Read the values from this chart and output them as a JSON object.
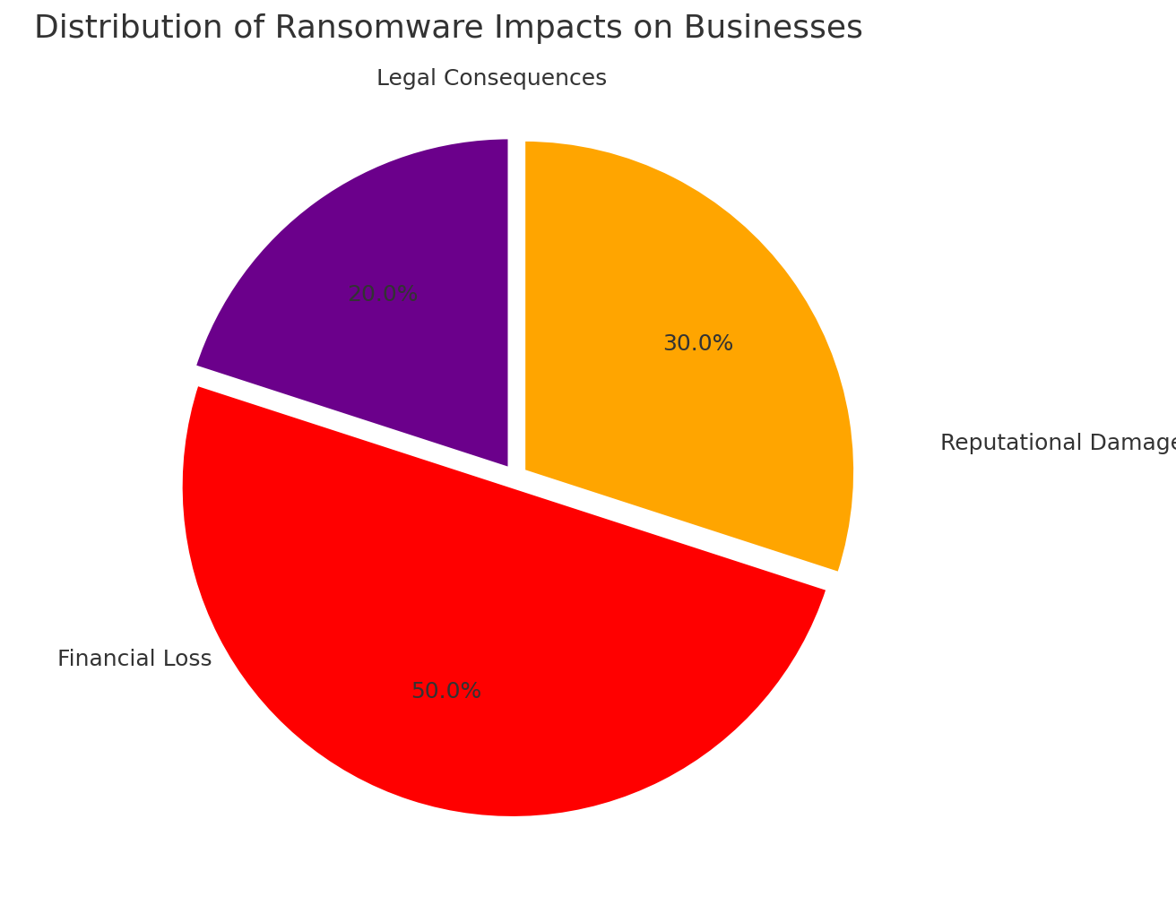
{
  "title": "Distribution of Ransomware Impacts on Businesses",
  "title_fontsize": 26,
  "labels": [
    "Reputational Damage",
    "Financial Loss",
    "Legal Consequences"
  ],
  "values": [
    30.0,
    50.0,
    20.0
  ],
  "colors": [
    "#FFA500",
    "#FF0000",
    "#6B008B"
  ],
  "explode": [
    0.03,
    0.03,
    0.03
  ],
  "autopct_fontsize": 18,
  "label_fontsize": 18,
  "startangle": 90,
  "background_color": "#FFFFFF",
  "text_color": "#333333",
  "wedge_linewidth": 3,
  "wedge_edgecolor": "#FFFFFF",
  "pctdistance": 0.65,
  "label_positions": {
    "Reputational Damage": [
      1.28,
      0.1
    ],
    "Financial Loss": [
      -1.38,
      -0.55
    ],
    "Legal Consequences": [
      -0.42,
      1.2
    ]
  }
}
